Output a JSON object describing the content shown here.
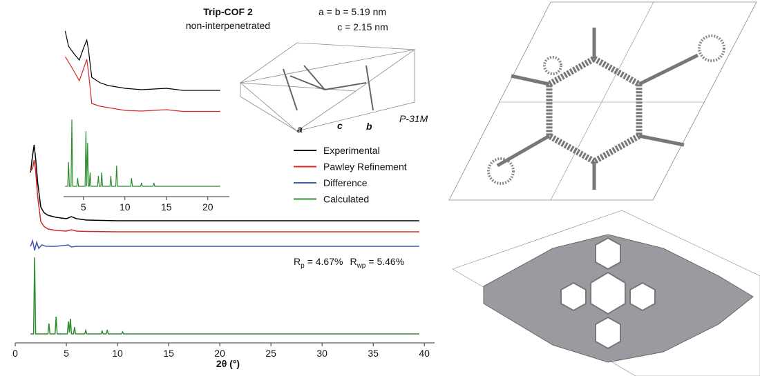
{
  "chart_data": [
    {
      "type": "line",
      "title": "Trip-COF 2",
      "subtitle": "non-interpenetrated",
      "x_label": "2θ (°)",
      "xlim": [
        0,
        41
      ],
      "xticks": [
        0,
        5,
        10,
        15,
        20,
        25,
        30,
        35,
        40
      ],
      "legend": "right",
      "annotations": {
        "cell_ab": "a = b = 5.19 nm",
        "cell_c": "c = 2.15 nm",
        "space_group": "P-31M",
        "axis_a": "a",
        "axis_c": "c",
        "axis_b": "b",
        "rp": {
          "symbol": "R",
          "sub": "p",
          "text": "= 4.67%"
        },
        "rwp": {
          "symbol": "R",
          "sub": "wp",
          "text": "= 5.46%"
        }
      },
      "series": [
        {
          "name": "Experimental",
          "color": "#000000",
          "x": [
            1.5,
            1.7,
            1.85,
            2.0,
            2.2,
            2.5,
            2.8,
            3.2,
            4,
            5,
            5.5,
            6,
            7,
            10,
            20,
            30,
            39.5
          ],
          "values": [
            70,
            95,
            110,
            90,
            55,
            20,
            12,
            8,
            5,
            3,
            6,
            3,
            1,
            0,
            0,
            0,
            0
          ]
        },
        {
          "name": "Pawley Refinement",
          "color": "#d62728",
          "x": [
            1.5,
            1.7,
            1.85,
            2.0,
            2.2,
            2.5,
            2.8,
            3.2,
            4,
            5,
            5.5,
            6,
            7,
            10,
            20,
            30,
            39.5
          ],
          "values": [
            88,
            92,
            104,
            88,
            50,
            15,
            8,
            4,
            2,
            1,
            3,
            1,
            0.5,
            0,
            0,
            0,
            0
          ]
        },
        {
          "name": "Difference",
          "color": "#3a5fa8",
          "x": [
            1.5,
            1.7,
            1.9,
            2.1,
            2.3,
            2.6,
            3,
            4,
            5.2,
            5.5,
            6,
            39.5
          ],
          "values": [
            0,
            8,
            -6,
            6,
            -3,
            2,
            0,
            0,
            2,
            -1,
            0,
            0
          ]
        },
        {
          "name": "Calculated",
          "color": "#2e8b2e",
          "x": [
            1.5,
            1.8,
            1.9,
            2.0,
            3.2,
            3.3,
            3.4,
            3.9,
            4.0,
            4.1,
            5.1,
            5.2,
            5.3,
            5.4,
            5.5,
            5.7,
            5.8,
            5.9,
            6.8,
            6.9,
            7.0,
            8.4,
            8.5,
            8.6,
            8.9,
            9.0,
            9.1,
            10.4,
            10.5,
            10.6,
            39.5
          ],
          "values": [
            0,
            0,
            111,
            0,
            0,
            15,
            0,
            0,
            25,
            0,
            0,
            18,
            2,
            22,
            0,
            0,
            10,
            0,
            0,
            5,
            0,
            0,
            4,
            0,
            0,
            6,
            0,
            0,
            3,
            0,
            0
          ]
        }
      ]
    },
    {
      "type": "line",
      "xlim": [
        2.6,
        22.6
      ],
      "xticks": [
        5,
        10,
        15,
        20
      ],
      "series": [
        {
          "color": "#000000",
          "x": [
            2.8,
            3.2,
            3.8,
            4.5,
            5.0,
            5.4,
            5.6,
            6,
            7,
            8,
            10,
            12,
            15,
            17,
            21.5
          ],
          "values": [
            87,
            65,
            55,
            45,
            62,
            74,
            60,
            20,
            12,
            8,
            4,
            2,
            4,
            1,
            1
          ]
        },
        {
          "color": "#d62728",
          "x": [
            2.8,
            3.2,
            3.8,
            4.5,
            5.0,
            5.4,
            5.6,
            6,
            7,
            8,
            10,
            12,
            15,
            17,
            21.5
          ],
          "values": [
            80,
            72,
            60,
            45,
            62,
            76,
            58,
            12,
            8,
            6,
            2,
            1,
            3,
            0.5,
            0.5
          ]
        },
        {
          "color": "#2e8b2e",
          "x": [
            2.8,
            3.1,
            3.2,
            3.3,
            3.5,
            3.6,
            3.7,
            4.2,
            4.3,
            4.4,
            5.2,
            5.3,
            5.4,
            5.5,
            5.6,
            5.7,
            5.8,
            5.9,
            6.7,
            6.8,
            6.9,
            7.1,
            7.2,
            7.3,
            8.2,
            8.3,
            8.4,
            8.9,
            9.0,
            9.1,
            10.7,
            10.8,
            10.9,
            11.9,
            12.0,
            12.1,
            13.4,
            13.5,
            13.6,
            21.5
          ],
          "values": [
            0,
            0,
            35,
            0,
            0,
            97,
            0,
            0,
            12,
            0,
            0,
            80,
            0,
            63,
            0,
            0,
            20,
            0,
            0,
            15,
            0,
            0,
            20,
            0,
            0,
            15,
            0,
            0,
            30,
            0,
            0,
            12,
            0,
            0,
            5,
            0,
            0,
            5,
            0,
            0
          ]
        }
      ]
    }
  ]
}
